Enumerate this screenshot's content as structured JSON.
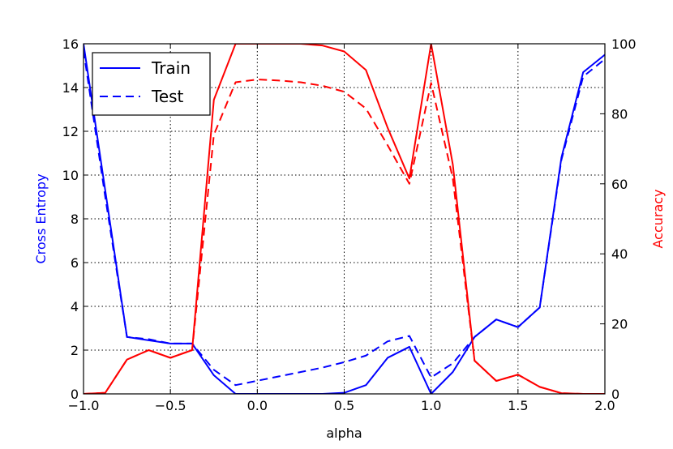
{
  "chart_data": {
    "type": "line",
    "xlabel": "alpha",
    "ylabel_left": "Cross Entropy",
    "ylabel_right": "Accuracy",
    "xlim": [
      -1.0,
      2.0
    ],
    "ylim_left": [
      0,
      16
    ],
    "ylim_right": [
      0,
      100
    ],
    "grid": true,
    "legend_placement": "top-left",
    "x_ticks": [
      "−1.0",
      "−0.5",
      "0.0",
      "0.5",
      "1.0",
      "1.5",
      "2.0"
    ],
    "y_ticks_left": [
      "0",
      "2",
      "4",
      "6",
      "8",
      "10",
      "12",
      "14",
      "16"
    ],
    "y_ticks_right": [
      "0",
      "20",
      "40",
      "60",
      "80",
      "100"
    ],
    "colors": {
      "left_axis": "#0000ff",
      "right_axis": "#ff0000"
    },
    "legend": [
      {
        "label": "Train",
        "style": "solid"
      },
      {
        "label": "Test",
        "style": "dashed"
      }
    ],
    "x": [
      -1.0,
      -0.875,
      -0.75,
      -0.625,
      -0.5,
      -0.375,
      -0.25,
      -0.125,
      0.0,
      0.125,
      0.25,
      0.375,
      0.5,
      0.625,
      0.75,
      0.875,
      1.0,
      1.125,
      1.25,
      1.375,
      1.5,
      1.625,
      1.75,
      1.875,
      2.0
    ],
    "series": [
      {
        "name": "Train",
        "axis": "left",
        "color": "#0000ff",
        "style": "solid",
        "values": [
          16.0,
          9.3,
          2.6,
          2.45,
          2.3,
          2.3,
          0.85,
          0.0,
          0.0,
          0.0,
          0.0,
          0.0,
          0.05,
          0.4,
          1.65,
          2.15,
          0.0,
          1.0,
          2.6,
          3.4,
          3.05,
          3.95,
          10.8,
          14.7,
          15.5
        ]
      },
      {
        "name": "Test",
        "axis": "left",
        "color": "#0000ff",
        "style": "dashed",
        "values": [
          15.7,
          9.0,
          2.6,
          2.5,
          2.3,
          2.3,
          1.1,
          0.4,
          0.6,
          0.8,
          1.0,
          1.2,
          1.45,
          1.75,
          2.4,
          2.65,
          0.75,
          1.4,
          2.6,
          3.4,
          3.05,
          3.95,
          10.7,
          14.5,
          15.3
        ]
      },
      {
        "name": "Train",
        "axis": "right",
        "color": "#ff0000",
        "style": "solid",
        "values": [
          0.0,
          0.3,
          9.8,
          12.5,
          10.3,
          12.5,
          84.0,
          100.0,
          100.0,
          100.0,
          100.0,
          99.5,
          97.8,
          92.5,
          76.0,
          61.5,
          100.0,
          65.5,
          9.5,
          3.7,
          5.5,
          2.0,
          0.2,
          0.0,
          0.0
        ]
      },
      {
        "name": "Test",
        "axis": "right",
        "color": "#ff0000",
        "style": "dashed",
        "values": [
          0.0,
          0.3,
          9.8,
          12.5,
          10.3,
          12.5,
          74.0,
          89.0,
          89.8,
          89.5,
          89.0,
          88.0,
          86.3,
          81.5,
          71.0,
          60.0,
          88.8,
          61.5,
          9.5,
          3.7,
          5.5,
          2.0,
          0.2,
          0.0,
          0.0
        ]
      }
    ]
  }
}
